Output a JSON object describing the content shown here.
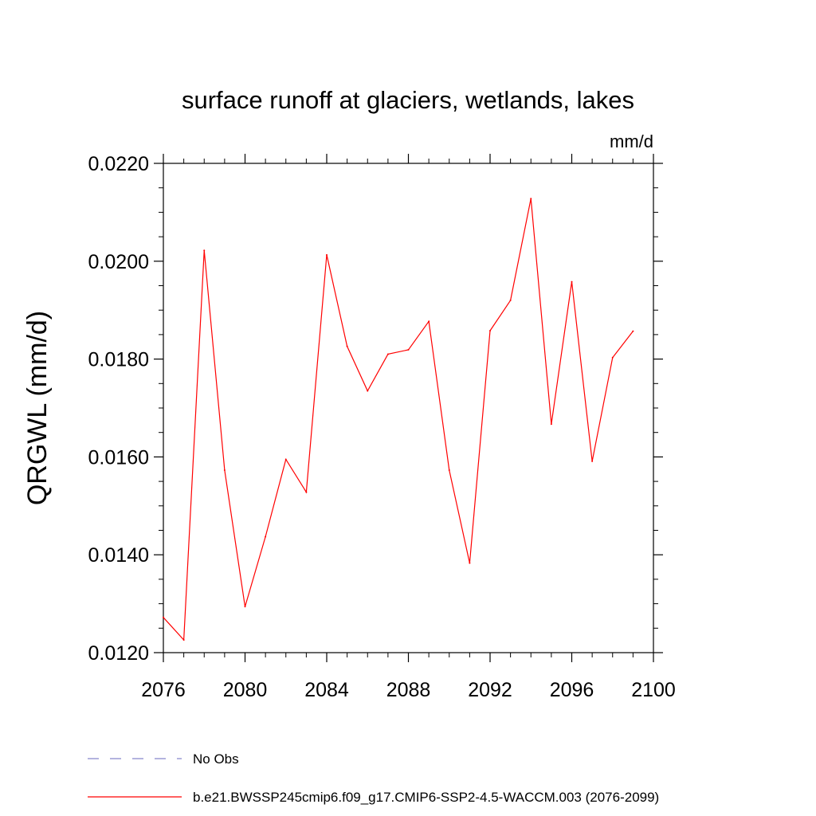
{
  "chart_data": {
    "type": "line",
    "title": "surface runoff at glaciers, wetlands, lakes",
    "units_label": "mm/d",
    "ylabel": "QRGWL  (mm/d)",
    "xlabel": "",
    "xlim": [
      2076,
      2100
    ],
    "ylim": [
      0.012,
      0.022
    ],
    "x_ticks": [
      "2076",
      "2080",
      "2084",
      "2088",
      "2092",
      "2096",
      "2100"
    ],
    "y_ticks": [
      "0.0120",
      "0.0140",
      "0.0160",
      "0.0180",
      "0.0200",
      "0.0220"
    ],
    "grid": false,
    "legend_position": "bottom",
    "series": [
      {
        "name": "No Obs",
        "color": "#8888cc",
        "dash": "dashed",
        "x": [],
        "values": []
      },
      {
        "name": "b.e21.BWSSP245cmip6.f09_g17.CMIP6-SSP2-4.5-WACCM.003 (2076-2099)",
        "color": "#ff0000",
        "dash": "solid",
        "x": [
          2076,
          2077,
          2078,
          2079,
          2080,
          2081,
          2082,
          2083,
          2084,
          2085,
          2086,
          2087,
          2088,
          2089,
          2090,
          2091,
          2092,
          2093,
          2094,
          2095,
          2096,
          2097,
          2098,
          2099
        ],
        "values": [
          0.01272,
          0.01226,
          0.02022,
          0.01573,
          0.01294,
          0.01437,
          0.01595,
          0.01528,
          0.02013,
          0.01826,
          0.01735,
          0.0181,
          0.01819,
          0.01877,
          0.01573,
          0.01383,
          0.01858,
          0.0192,
          0.02128,
          0.01667,
          0.01958,
          0.01591,
          0.01803,
          0.01857
        ]
      }
    ]
  }
}
